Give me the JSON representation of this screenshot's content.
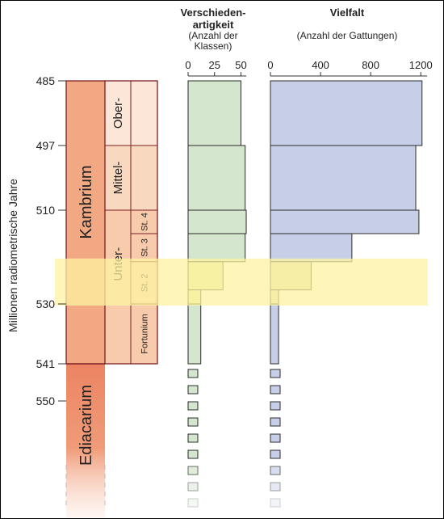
{
  "chart_data": [
    {
      "type": "bar",
      "orientation": "horizontal",
      "title": "Verschieden-\nartigkeit",
      "subtitle": "(Anzahl der\nKlassen)",
      "xlim": [
        0,
        55
      ],
      "x_ticks": [
        "0",
        "25",
        "50"
      ],
      "bars": [
        {
          "from": 485,
          "to": 497,
          "value": 50
        },
        {
          "from": 497,
          "to": 510,
          "value": 54
        },
        {
          "from": 510,
          "to": 515,
          "value": 55
        },
        {
          "from": 515,
          "to": 521,
          "value": 54
        },
        {
          "from": 521,
          "to": 527,
          "value": 33
        },
        {
          "from": 527,
          "to": 530,
          "value": 12
        },
        {
          "from": 530,
          "to": 541,
          "value": 12
        }
      ],
      "color": "#d4e6cd",
      "highlight_color": "#e3e9a6"
    },
    {
      "type": "bar",
      "orientation": "horizontal",
      "title": "Vielfalt",
      "subtitle": "(Anzahl der Gattungen)",
      "xlim": [
        0,
        1250
      ],
      "x_ticks": [
        "0",
        "400",
        "800",
        "1200"
      ],
      "bars": [
        {
          "from": 485,
          "to": 497,
          "value": 1210
        },
        {
          "from": 497,
          "to": 510,
          "value": 1160
        },
        {
          "from": 510,
          "to": 515,
          "value": 1185
        },
        {
          "from": 515,
          "to": 521,
          "value": 650
        },
        {
          "from": 521,
          "to": 527,
          "value": 325
        },
        {
          "from": 527,
          "to": 530,
          "value": 65
        },
        {
          "from": 530,
          "to": 541,
          "value": 65
        }
      ],
      "color": "#c6cfe7",
      "highlight_color": "#ddd9b5"
    }
  ],
  "y_axis": {
    "label": "Millionen radiometrische Jahre",
    "ticks": [
      "485",
      "497",
      "510",
      "530",
      "541",
      "550"
    ]
  },
  "stratigraphy": {
    "systems": [
      {
        "name": "Kambrium",
        "from": 485,
        "to": 541
      },
      {
        "name": "Ediacarium",
        "from": 541
      }
    ],
    "series": [
      {
        "name": "Ober-",
        "from": 485,
        "to": 497
      },
      {
        "name": "Mittel-",
        "from": 497,
        "to": 510
      },
      {
        "name": "Unter-",
        "from": 510,
        "to": 541
      }
    ],
    "stages": [
      {
        "name": "St. 4",
        "from": 510,
        "to": 515
      },
      {
        "name": "St. 3",
        "from": 515,
        "to": 521
      },
      {
        "name": "St. 2",
        "from": 521,
        "to": 530
      },
      {
        "name": "Fortunium",
        "from": 530,
        "to": 541
      }
    ]
  },
  "highlight": {
    "from": 521,
    "to": 530,
    "color": "#fdf3a2"
  },
  "colors": {
    "kambrium": "#f2a983",
    "ediacarium": "#ec8463",
    "border": "#7b1f22",
    "series_ober": "#fbe6d7",
    "series_mittel": "#f9d8c0",
    "series_unter": "#f7cbab"
  }
}
